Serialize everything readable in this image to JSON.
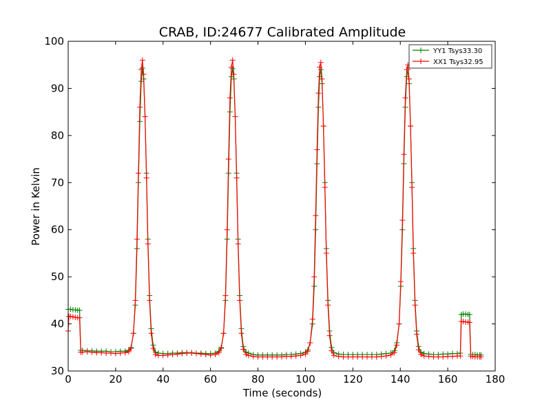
{
  "chart_data": {
    "type": "line",
    "title": "CRAB, ID:24677 Calibrated Amplitude",
    "xlabel": "Time (seconds)",
    "ylabel": "Power in Kelvin",
    "xlim": [
      0,
      180
    ],
    "ylim": [
      30,
      100
    ],
    "xticks": [
      0,
      20,
      40,
      60,
      80,
      100,
      120,
      140,
      160,
      180
    ],
    "yticks": [
      30,
      40,
      50,
      60,
      70,
      80,
      90,
      100
    ],
    "grid": false,
    "legend_position": "top-right",
    "series": [
      {
        "name": "YY1 Tsys33.30",
        "color": "#008000",
        "marker": "+",
        "points": [
          [
            0.0,
            43.1
          ],
          [
            1.0,
            43.1
          ],
          [
            2.0,
            43.0
          ],
          [
            3.0,
            43.0
          ],
          [
            4.0,
            42.9
          ],
          [
            4.8,
            42.9
          ],
          [
            5.3,
            34.4
          ],
          [
            6.0,
            34.4
          ],
          [
            8.0,
            34.3
          ],
          [
            10.0,
            34.3
          ],
          [
            12.0,
            34.2
          ],
          [
            14.0,
            34.2
          ],
          [
            16.0,
            34.2
          ],
          [
            18.0,
            34.1
          ],
          [
            20.0,
            34.1
          ],
          [
            22.0,
            34.2
          ],
          [
            24.0,
            34.2
          ],
          [
            25.5,
            34.4
          ],
          [
            26.5,
            35.0
          ],
          [
            27.5,
            38.0
          ],
          [
            28.3,
            44.0
          ],
          [
            29.0,
            56.0
          ],
          [
            29.6,
            70.0
          ],
          [
            30.2,
            83.0
          ],
          [
            30.8,
            91.5
          ],
          [
            31.3,
            94.3
          ],
          [
            31.8,
            92.0
          ],
          [
            32.4,
            84.0
          ],
          [
            33.0,
            72.0
          ],
          [
            33.6,
            58.0
          ],
          [
            34.3,
            46.0
          ],
          [
            35.0,
            39.0
          ],
          [
            35.8,
            35.5
          ],
          [
            36.8,
            34.0
          ],
          [
            38.0,
            33.8
          ],
          [
            40.0,
            33.7
          ],
          [
            42.0,
            33.7
          ],
          [
            44.0,
            33.8
          ],
          [
            46.0,
            33.8
          ],
          [
            48.0,
            33.9
          ],
          [
            50.0,
            33.9
          ],
          [
            52.0,
            33.9
          ],
          [
            54.0,
            33.8
          ],
          [
            56.0,
            33.8
          ],
          [
            58.0,
            33.7
          ],
          [
            60.0,
            33.7
          ],
          [
            62.0,
            33.8
          ],
          [
            63.5,
            34.2
          ],
          [
            64.5,
            35.0
          ],
          [
            65.5,
            38.0
          ],
          [
            66.3,
            45.0
          ],
          [
            67.0,
            58.0
          ],
          [
            67.6,
            72.0
          ],
          [
            68.2,
            85.0
          ],
          [
            68.8,
            92.5
          ],
          [
            69.3,
            94.2
          ],
          [
            69.8,
            92.0
          ],
          [
            70.4,
            84.0
          ],
          [
            71.0,
            72.0
          ],
          [
            71.6,
            58.0
          ],
          [
            72.3,
            46.0
          ],
          [
            73.0,
            39.0
          ],
          [
            73.8,
            35.2
          ],
          [
            75.0,
            34.0
          ],
          [
            76.0,
            33.8
          ],
          [
            78.0,
            33.5
          ],
          [
            80.0,
            33.4
          ],
          [
            82.0,
            33.4
          ],
          [
            84.0,
            33.4
          ],
          [
            86.0,
            33.4
          ],
          [
            88.0,
            33.4
          ],
          [
            90.0,
            33.4
          ],
          [
            92.0,
            33.5
          ],
          [
            94.0,
            33.5
          ],
          [
            96.0,
            33.6
          ],
          [
            98.0,
            33.7
          ],
          [
            100.0,
            34.0
          ],
          [
            101.0,
            34.5
          ],
          [
            102.0,
            36.0
          ],
          [
            103.0,
            40.0
          ],
          [
            103.7,
            48.0
          ],
          [
            104.3,
            60.0
          ],
          [
            104.9,
            74.0
          ],
          [
            105.5,
            86.0
          ],
          [
            106.0,
            92.5
          ],
          [
            106.5,
            94.0
          ],
          [
            107.0,
            91.0
          ],
          [
            107.6,
            82.0
          ],
          [
            108.2,
            70.0
          ],
          [
            108.8,
            56.0
          ],
          [
            109.5,
            45.0
          ],
          [
            110.2,
            38.5
          ],
          [
            111.0,
            35.0
          ],
          [
            112.0,
            33.9
          ],
          [
            114.0,
            33.6
          ],
          [
            116.0,
            33.5
          ],
          [
            118.0,
            33.5
          ],
          [
            120.0,
            33.5
          ],
          [
            122.0,
            33.5
          ],
          [
            124.0,
            33.5
          ],
          [
            126.0,
            33.5
          ],
          [
            128.0,
            33.5
          ],
          [
            130.0,
            33.5
          ],
          [
            132.0,
            33.6
          ],
          [
            134.0,
            33.7
          ],
          [
            136.0,
            33.8
          ],
          [
            137.5,
            34.3
          ],
          [
            138.5,
            36.0
          ],
          [
            139.5,
            40.0
          ],
          [
            140.2,
            48.0
          ],
          [
            140.9,
            60.0
          ],
          [
            141.5,
            74.0
          ],
          [
            142.1,
            86.0
          ],
          [
            142.7,
            92.5
          ],
          [
            143.2,
            94.0
          ],
          [
            143.7,
            91.0
          ],
          [
            144.3,
            82.0
          ],
          [
            144.9,
            70.0
          ],
          [
            145.5,
            56.0
          ],
          [
            146.2,
            45.0
          ],
          [
            146.9,
            38.5
          ],
          [
            147.7,
            35.2
          ],
          [
            148.7,
            34.0
          ],
          [
            150.0,
            33.7
          ],
          [
            152.0,
            33.6
          ],
          [
            154.0,
            33.5
          ],
          [
            156.0,
            33.5
          ],
          [
            158.0,
            33.6
          ],
          [
            160.0,
            33.6
          ],
          [
            162.0,
            33.7
          ],
          [
            164.0,
            33.7
          ],
          [
            165.3,
            33.8
          ],
          [
            165.7,
            42.0
          ],
          [
            166.5,
            42.1
          ],
          [
            167.5,
            42.1
          ],
          [
            168.5,
            42.0
          ],
          [
            169.2,
            42.0
          ],
          [
            169.7,
            33.5
          ],
          [
            170.5,
            33.5
          ],
          [
            171.5,
            33.5
          ],
          [
            172.5,
            33.4
          ],
          [
            173.5,
            33.4
          ],
          [
            174.0,
            33.4
          ]
        ]
      },
      {
        "name": "XX1 Tsys32.95",
        "color": "#ff0000",
        "marker": "+",
        "points": [
          [
            0.0,
            38.5
          ],
          [
            0.3,
            41.6
          ],
          [
            1.0,
            41.6
          ],
          [
            2.0,
            41.5
          ],
          [
            3.0,
            41.4
          ],
          [
            4.0,
            41.3
          ],
          [
            4.8,
            41.3
          ],
          [
            5.3,
            34.0
          ],
          [
            6.0,
            34.0
          ],
          [
            8.0,
            34.1
          ],
          [
            10.0,
            34.0
          ],
          [
            12.0,
            33.9
          ],
          [
            14.0,
            33.9
          ],
          [
            16.0,
            33.8
          ],
          [
            18.0,
            33.8
          ],
          [
            20.0,
            33.7
          ],
          [
            22.0,
            33.8
          ],
          [
            24.0,
            33.9
          ],
          [
            25.5,
            34.1
          ],
          [
            26.5,
            34.8
          ],
          [
            27.5,
            38.0
          ],
          [
            28.3,
            45.0
          ],
          [
            29.0,
            58.0
          ],
          [
            29.6,
            72.0
          ],
          [
            30.2,
            86.0
          ],
          [
            30.8,
            94.0
          ],
          [
            31.3,
            96.0
          ],
          [
            31.8,
            93.0
          ],
          [
            32.4,
            84.0
          ],
          [
            33.0,
            71.0
          ],
          [
            33.6,
            57.0
          ],
          [
            34.3,
            45.0
          ],
          [
            35.0,
            38.0
          ],
          [
            35.8,
            34.8
          ],
          [
            36.8,
            33.5
          ],
          [
            38.0,
            33.3
          ],
          [
            40.0,
            33.3
          ],
          [
            42.0,
            33.4
          ],
          [
            44.0,
            33.5
          ],
          [
            46.0,
            33.6
          ],
          [
            48.0,
            33.7
          ],
          [
            50.0,
            33.8
          ],
          [
            52.0,
            33.8
          ],
          [
            54.0,
            33.7
          ],
          [
            56.0,
            33.6
          ],
          [
            58.0,
            33.5
          ],
          [
            60.0,
            33.4
          ],
          [
            62.0,
            33.5
          ],
          [
            63.5,
            33.9
          ],
          [
            64.5,
            34.8
          ],
          [
            65.5,
            38.0
          ],
          [
            66.3,
            46.0
          ],
          [
            67.0,
            60.0
          ],
          [
            67.6,
            75.0
          ],
          [
            68.2,
            88.0
          ],
          [
            68.8,
            94.5
          ],
          [
            69.3,
            96.0
          ],
          [
            69.8,
            93.0
          ],
          [
            70.4,
            84.0
          ],
          [
            71.0,
            71.0
          ],
          [
            71.6,
            57.0
          ],
          [
            72.3,
            45.0
          ],
          [
            73.0,
            38.0
          ],
          [
            73.8,
            34.6
          ],
          [
            75.0,
            33.5
          ],
          [
            76.0,
            33.3
          ],
          [
            78.0,
            33.1
          ],
          [
            80.0,
            33.0
          ],
          [
            82.0,
            33.0
          ],
          [
            84.0,
            33.0
          ],
          [
            86.0,
            33.0
          ],
          [
            88.0,
            33.0
          ],
          [
            90.0,
            33.0
          ],
          [
            92.0,
            33.1
          ],
          [
            94.0,
            33.1
          ],
          [
            96.0,
            33.2
          ],
          [
            98.0,
            33.3
          ],
          [
            100.0,
            33.6
          ],
          [
            101.0,
            34.2
          ],
          [
            102.0,
            36.0
          ],
          [
            103.0,
            41.0
          ],
          [
            103.7,
            50.0
          ],
          [
            104.3,
            63.0
          ],
          [
            104.9,
            77.0
          ],
          [
            105.5,
            89.0
          ],
          [
            106.0,
            94.5
          ],
          [
            106.5,
            95.5
          ],
          [
            107.0,
            92.0
          ],
          [
            107.6,
            82.0
          ],
          [
            108.2,
            69.0
          ],
          [
            108.8,
            55.0
          ],
          [
            109.5,
            44.0
          ],
          [
            110.2,
            37.5
          ],
          [
            111.0,
            34.3
          ],
          [
            112.0,
            33.3
          ],
          [
            114.0,
            33.1
          ],
          [
            116.0,
            33.0
          ],
          [
            118.0,
            33.0
          ],
          [
            120.0,
            33.0
          ],
          [
            122.0,
            33.0
          ],
          [
            124.0,
            33.0
          ],
          [
            126.0,
            33.0
          ],
          [
            128.0,
            33.0
          ],
          [
            130.0,
            33.0
          ],
          [
            132.0,
            33.1
          ],
          [
            134.0,
            33.2
          ],
          [
            136.0,
            33.4
          ],
          [
            137.5,
            33.9
          ],
          [
            138.5,
            35.5
          ],
          [
            139.5,
            40.0
          ],
          [
            140.2,
            49.0
          ],
          [
            140.9,
            62.0
          ],
          [
            141.5,
            76.0
          ],
          [
            142.1,
            88.0
          ],
          [
            142.7,
            94.0
          ],
          [
            143.2,
            95.0
          ],
          [
            143.7,
            92.0
          ],
          [
            144.3,
            82.0
          ],
          [
            144.9,
            69.0
          ],
          [
            145.5,
            55.0
          ],
          [
            146.2,
            44.0
          ],
          [
            146.9,
            37.8
          ],
          [
            147.7,
            34.5
          ],
          [
            148.7,
            33.5
          ],
          [
            150.0,
            33.2
          ],
          [
            152.0,
            33.1
          ],
          [
            154.0,
            33.0
          ],
          [
            156.0,
            33.0
          ],
          [
            158.0,
            33.0
          ],
          [
            160.0,
            33.1
          ],
          [
            162.0,
            33.1
          ],
          [
            164.0,
            33.2
          ],
          [
            165.3,
            33.2
          ],
          [
            165.7,
            40.5
          ],
          [
            166.5,
            40.5
          ],
          [
            167.5,
            40.4
          ],
          [
            168.5,
            40.4
          ],
          [
            169.2,
            40.3
          ],
          [
            169.7,
            33.1
          ],
          [
            170.5,
            33.1
          ],
          [
            171.5,
            33.0
          ],
          [
            172.5,
            33.0
          ],
          [
            173.5,
            33.0
          ],
          [
            174.0,
            33.0
          ]
        ]
      }
    ]
  }
}
